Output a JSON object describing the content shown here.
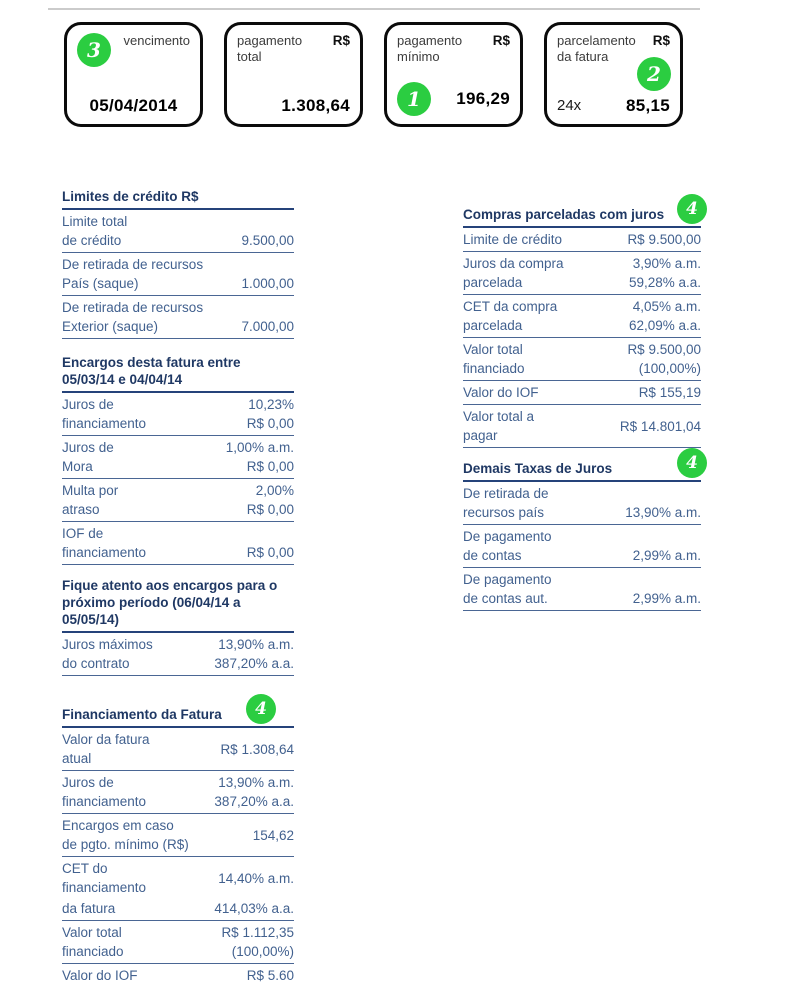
{
  "colors": {
    "accent_green": "#2bcd41",
    "header_navy": "#1f3864",
    "body_text_blue": "#42618f",
    "card_border_black": "#0b0b0b",
    "top_rule_gray": "#cbcbcb"
  },
  "cards": [
    {
      "badge": "3",
      "label": "vencimento",
      "value": "05/04/2014"
    },
    {
      "label": "pagamento total",
      "currency": "R$",
      "value": "1.308,64"
    },
    {
      "badge": "1",
      "label": "pagamento mínimo",
      "currency": "R$",
      "value": "196,29"
    },
    {
      "badge": "2",
      "label": "parcelamento da fatura",
      "currency": "R$",
      "prefix": "24x",
      "value": "85,15"
    }
  ],
  "left_column": {
    "sections": [
      {
        "title": "Limites de crédito R$",
        "rows": [
          {
            "left": [
              "Limite total",
              "de crédito"
            ],
            "right": [
              "",
              "9.500,00"
            ]
          },
          {
            "left": [
              "De retirada de recursos",
              "País (saque)"
            ],
            "right": [
              "",
              "1.000,00"
            ]
          },
          {
            "left": [
              "De retirada de recursos",
              "Exterior (saque)"
            ],
            "right": [
              "",
              "7.000,00"
            ]
          }
        ]
      },
      {
        "title": "Encargos desta fatura entre 05/03/14 e 04/04/14",
        "rows": [
          {
            "left": [
              "Juros de",
              "financiamento"
            ],
            "right": [
              "10,23%",
              "R$ 0,00"
            ]
          },
          {
            "left": [
              "Juros de",
              "Mora"
            ],
            "right": [
              "1,00% a.m.",
              "R$ 0,00"
            ]
          },
          {
            "left": [
              "Multa por",
              "atraso"
            ],
            "right": [
              "2,00%",
              "R$ 0,00"
            ]
          },
          {
            "left": [
              "IOF de",
              "financiamento"
            ],
            "right": [
              "",
              "R$ 0,00"
            ]
          }
        ]
      },
      {
        "title": "Fique atento aos encargos para o próximo período (06/04/14 a 05/05/14)",
        "rows": [
          {
            "left": [
              "Juros máximos",
              "do contrato"
            ],
            "right": [
              "13,90% a.m.",
              "387,20% a.a."
            ]
          }
        ]
      },
      {
        "title": "Financiamento da Fatura",
        "badge": "4",
        "rows": [
          {
            "left": [
              "Valor da fatura",
              "atual"
            ],
            "right": [
              "R$ 1.308,64"
            ]
          },
          {
            "left": [
              "Juros de",
              "financiamento"
            ],
            "right": [
              "13,90% a.m.",
              "387,20% a.a."
            ]
          },
          {
            "left": [
              "Encargos em caso",
              "de pgto. mínimo (R$)"
            ],
            "right": [
              "154,62"
            ]
          },
          {
            "left": [
              "CET do",
              "financiamento"
            ],
            "right": [
              "14,40% a.m."
            ],
            "joined": true
          },
          {
            "left": [
              "da fatura"
            ],
            "right": [
              "414,03% a.a."
            ]
          },
          {
            "left": [
              "Valor total",
              "financiado"
            ],
            "right": [
              "R$ 1.112,35",
              "(100,00%)"
            ]
          },
          {
            "left": [
              "Valor do IOF"
            ],
            "right": [
              "R$ 5.60"
            ],
            "no_line": true
          }
        ]
      }
    ]
  },
  "right_column": {
    "sections": [
      {
        "title": "Compras parceladas com juros",
        "badge": "4",
        "rows": [
          {
            "left": [
              "Limite de crédito"
            ],
            "right": [
              "R$ 9.500,00"
            ]
          },
          {
            "left": [
              "Juros da compra",
              "parcelada"
            ],
            "right": [
              "3,90% a.m.",
              "59,28% a.a."
            ]
          },
          {
            "left": [
              "CET da compra",
              "parcelada"
            ],
            "right": [
              "4,05% a.m.",
              "62,09% a.a."
            ]
          },
          {
            "left": [
              "Valor total",
              "financiado"
            ],
            "right": [
              "R$ 9.500,00",
              "(100,00%)"
            ]
          },
          {
            "left": [
              "Valor do IOF"
            ],
            "right": [
              "R$ 155,19"
            ]
          },
          {
            "left": [
              "Valor total a",
              "pagar"
            ],
            "right": [
              "R$ 14.801,04"
            ]
          }
        ]
      },
      {
        "title": "Demais Taxas de Juros",
        "badge": "4",
        "rows": [
          {
            "left": [
              "De retirada de",
              "recursos país"
            ],
            "right": [
              "",
              "13,90% a.m."
            ]
          },
          {
            "left": [
              "De pagamento",
              "de contas"
            ],
            "right": [
              "",
              "2,99% a.m."
            ]
          },
          {
            "left": [
              "De pagamento",
              "de contas aut."
            ],
            "right": [
              "",
              "2,99% a.m."
            ]
          }
        ]
      }
    ]
  }
}
